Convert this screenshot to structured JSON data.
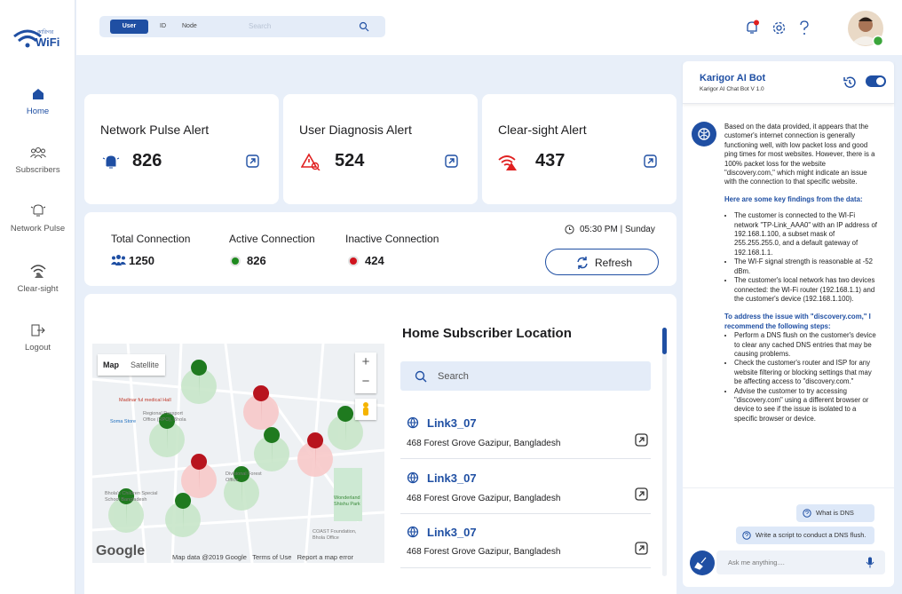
{
  "logo": {
    "bengali": "কারিগর",
    "text": "WiFi"
  },
  "search": {
    "tabs": [
      "User",
      "ID",
      "Node"
    ],
    "placeholder": "Search"
  },
  "nav": [
    "Home",
    "Subscribers",
    "Network Pulse",
    "Clear-sight",
    "Logout"
  ],
  "alerts": [
    {
      "title": "Network Pulse Alert",
      "count": 826
    },
    {
      "title": "User Diagnosis Alert",
      "count": 524
    },
    {
      "title": "Clear-sight Alert",
      "count": 437
    }
  ],
  "connections": {
    "items": [
      {
        "label": "Total Connection",
        "count": 1250
      },
      {
        "label": "Active Connection",
        "count": 826
      },
      {
        "label": "Inactive Connection",
        "count": 424
      }
    ],
    "time": "05:30 PM | Sunday",
    "refresh": "Refresh"
  },
  "map": {
    "tabs": [
      "Map",
      "Satellite"
    ],
    "zoom": [
      "+",
      "−"
    ],
    "places": [
      "Madinar ful medical Hall",
      "Regional Passport Office (RPO), Bhola",
      "Soma Store",
      "Divisional Forest Office",
      "Bhola's Children Special School Bangladesh",
      "Wonderland Shishu Park",
      "COAST Foundation, Bhola Office"
    ],
    "brand": "Google",
    "footer": [
      "Map data @2019 Google",
      "Terms of Use",
      "Report a map error"
    ]
  },
  "locations": {
    "title": "Home Subscriber Location",
    "search": "Search",
    "items": [
      {
        "name": "Link3_07",
        "address": "468 Forest Grove Gazipur, Bangladesh"
      },
      {
        "name": "Link3_07",
        "address": "468 Forest Grove Gazipur, Bangladesh"
      },
      {
        "name": "Link3_07",
        "address": "468 Forest Grove Gazipur, Bangladesh"
      }
    ]
  },
  "chat": {
    "title": "Karigor AI Bot",
    "subtitle": "Karigor AI Chat Bot V 1.0",
    "intro": "Based on the data provided, it appears that the customer's internet connection is generally functioning well, with low packet loss and good ping times for most websites. However, there is a 100% packet loss for the website \"discovery.com,\" which might indicate an issue with the connection to that specific website.",
    "findings_heading": "Here are some key findings from the data:",
    "findings": [
      "The customer is connected to the WI-Fi network \"TP-Link_AAA0\" with an IP address of 192.168.1.100, a subset mask of 255.255.255.0, and a default gateway of 192.168.1.1.",
      "The WI-F signal strength is reasonable at -52 dBm.",
      "The customer's local network has two devices connected: the WI-Fi router (192.168.1.1) and the customer's device (192.168.1.100)."
    ],
    "steps_heading": "To address the issue with \"discovery.com,\" I recommend the following steps:",
    "steps": [
      "Perform a DNS flush on the customer's device to clear any cached DNS entries that may be causing problems.",
      "Check the customer's router and ISP for any website filtering or blocking settings that may be affecting access to \"discovery.com.\"",
      "Advise the customer to try accessing \"discovery.com\" using a different browser or device to see if the issue is isolated to a specific browser or device."
    ],
    "suggestions": [
      "What is DNS flush.",
      "Write a script to conduct a DNS flush."
    ],
    "input": "Ask me anything...."
  }
}
